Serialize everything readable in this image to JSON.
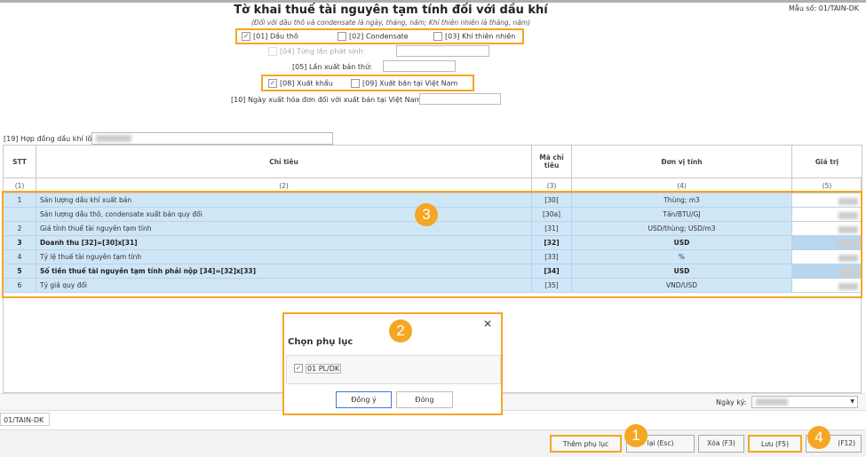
{
  "form": {
    "title": "Tờ khai thuế tài nguyên tạm tính đối với dầu khí",
    "subtitle": "(Đối với dầu thô và condensate là ngày, tháng, năm; Khí thiên nhiên là tháng, năm)",
    "mau_so": "Mẫu số: 01/TAIN-DK",
    "opt01": "[01] Dầu thô",
    "opt02": "[02] Condensate",
    "opt03": "[03] Khí thiên nhiên",
    "opt04": "[04] Từng lần phát sinh:",
    "opt05": "[05] Lần xuất bán thứ:",
    "opt08": "[08] Xuất khẩu",
    "opt09": "[09] Xuất bán tại Việt Nam",
    "opt10": "[10] Ngày xuất hóa đơn đối với xuất bán tại Việt Nam:",
    "opt19": "[19] Hợp đồng dầu khí lô:",
    "checked": {
      "opt01": true,
      "opt02": false,
      "opt03": false,
      "opt04": false,
      "opt08": true,
      "opt09": false
    }
  },
  "table": {
    "headers": [
      "STT",
      "Chỉ tiêu",
      "Mã chỉ tiêu",
      "Đơn vị tính",
      "Giá trị"
    ],
    "col_nums": [
      "(1)",
      "(2)",
      "(3)",
      "(4)",
      "(5)"
    ],
    "rows": [
      {
        "stt": "1",
        "name": "Sản lượng dầu khí xuất bán",
        "code": "[30]",
        "unit": "Thùng; m3",
        "bold": false
      },
      {
        "stt": "",
        "name": "Sản lượng dầu thô, condensate xuất bán quy đổi",
        "code": "[30a]",
        "unit": "Tấn/BTU/GJ",
        "bold": false
      },
      {
        "stt": "2",
        "name": "Giá tính thuế tài nguyên tạm tính",
        "code": "[31]",
        "unit": "USD/thùng; USD/m3",
        "bold": false
      },
      {
        "stt": "3",
        "name": "Doanh thu [32]=[30]x[31]",
        "code": "[32]",
        "unit": "USD",
        "bold": true
      },
      {
        "stt": "4",
        "name": "Tỷ lệ thuế tài nguyên tạm tính",
        "code": "[33]",
        "unit": "%",
        "bold": false
      },
      {
        "stt": "5",
        "name": "Số tiền thuế tài nguyên tạm tính phải nộp [34]=[32]x[33]",
        "code": "[34]",
        "unit": "USD",
        "bold": true
      },
      {
        "stt": "6",
        "name": "Tỷ giá quy đổi",
        "code": "[35]",
        "unit": "VND/USD",
        "bold": false
      }
    ]
  },
  "dialog": {
    "title": "Chọn phụ lục",
    "item": "01 PL/DK",
    "item_checked": true,
    "ok": "Đồng ý",
    "close": "Đóng"
  },
  "footer": {
    "ngay_ky": "Ngày ký:",
    "tab": "01/TAIN-DK",
    "buttons": [
      "Thêm phụ lục",
      "lại (Esc)",
      "Xóa (F3)",
      "Lưu (F5)",
      "(F12)"
    ]
  },
  "badges": [
    "1",
    "2",
    "3",
    "4"
  ],
  "colors": {
    "highlight": "#f5a623",
    "row_bg": "#cfe6f7"
  }
}
